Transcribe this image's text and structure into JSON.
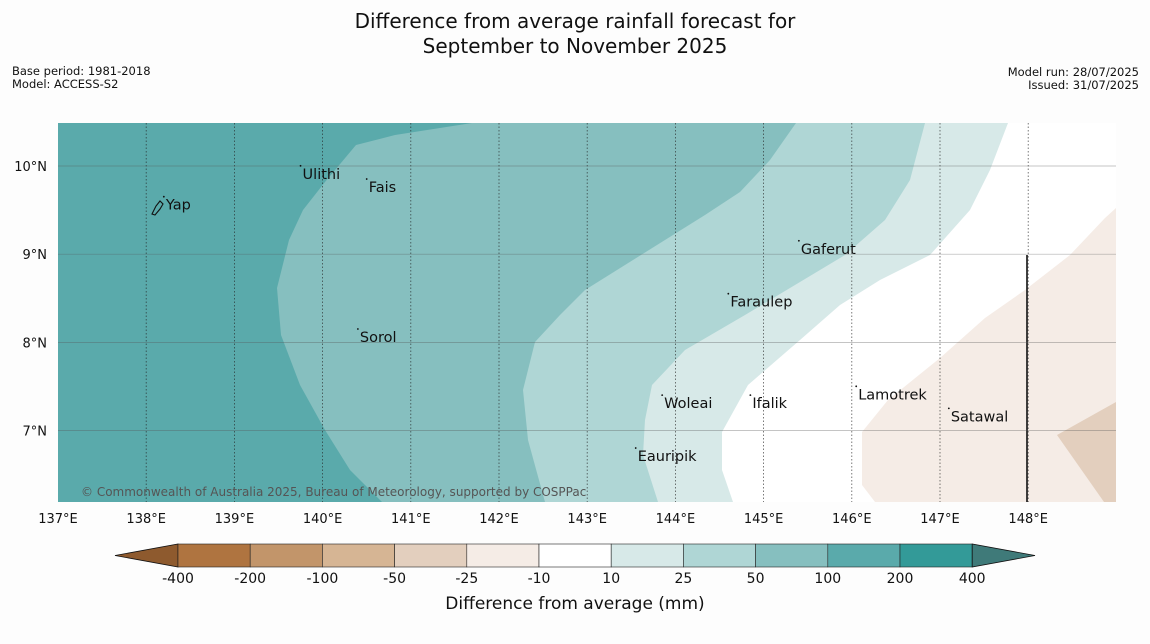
{
  "header": {
    "title_line1": "Difference from average rainfall forecast for",
    "title_line2": "September to November 2025",
    "base_period": "Base period: 1981-2018",
    "model": "Model: ACCESS-S2",
    "model_run": "Model run: 28/07/2025",
    "issued": "Issued: 31/07/2025"
  },
  "map": {
    "lon_range": [
      137,
      149
    ],
    "lat_range": [
      6.2,
      10.5
    ],
    "lon_ticks": [
      "137°E",
      "138°E",
      "139°E",
      "140°E",
      "141°E",
      "142°E",
      "143°E",
      "144°E",
      "145°E",
      "146°E",
      "147°E",
      "148°E"
    ],
    "lat_ticks": [
      "10°N",
      "9°N",
      "8°N",
      "7°N"
    ],
    "copyright": "© Commonwealth of Australia 2025, Bureau of Meteorology, supported by COSPPac",
    "places": [
      {
        "name": "Yap",
        "lon": 138.2,
        "lat": 9.55
      },
      {
        "name": "Ulithi",
        "lon": 139.75,
        "lat": 9.9
      },
      {
        "name": "Fais",
        "lon": 140.5,
        "lat": 9.75
      },
      {
        "name": "Sorol",
        "lon": 140.4,
        "lat": 8.05
      },
      {
        "name": "Gaferut",
        "lon": 145.4,
        "lat": 9.05
      },
      {
        "name": "Faraulep",
        "lon": 144.6,
        "lat": 8.45
      },
      {
        "name": "Woleai",
        "lon": 143.85,
        "lat": 7.3
      },
      {
        "name": "Ifalik",
        "lon": 144.85,
        "lat": 7.3
      },
      {
        "name": "Lamotrek",
        "lon": 146.05,
        "lat": 7.4
      },
      {
        "name": "Satawal",
        "lon": 147.1,
        "lat": 7.15
      },
      {
        "name": "Eauripik",
        "lon": 143.55,
        "lat": 6.7
      }
    ],
    "region_colors": {
      "gt_100": "#5aaaab",
      "50_100": "#86bfbf",
      "25_50": "#afd6d5",
      "10_25": "#d7e9e8",
      "neutral": "#ffffff",
      "neg_10_25": "#f5ece6",
      "neg_25_50": "#e3cfbe"
    }
  },
  "colorbar": {
    "title": "Difference from average (mm)",
    "labels": [
      "-400",
      "-200",
      "-100",
      "-50",
      "-25",
      "-10",
      "10",
      "25",
      "50",
      "100",
      "200",
      "400"
    ],
    "colors": [
      "#af7440",
      "#c2956a",
      "#d6b594",
      "#e3cfbe",
      "#f5ece6",
      "#ffffff",
      "#d7e9e8",
      "#afd6d5",
      "#86bfbf",
      "#5aaaab",
      "#339a98"
    ],
    "extend_low": "#8e5a2e",
    "extend_high": "#3f7a79"
  }
}
